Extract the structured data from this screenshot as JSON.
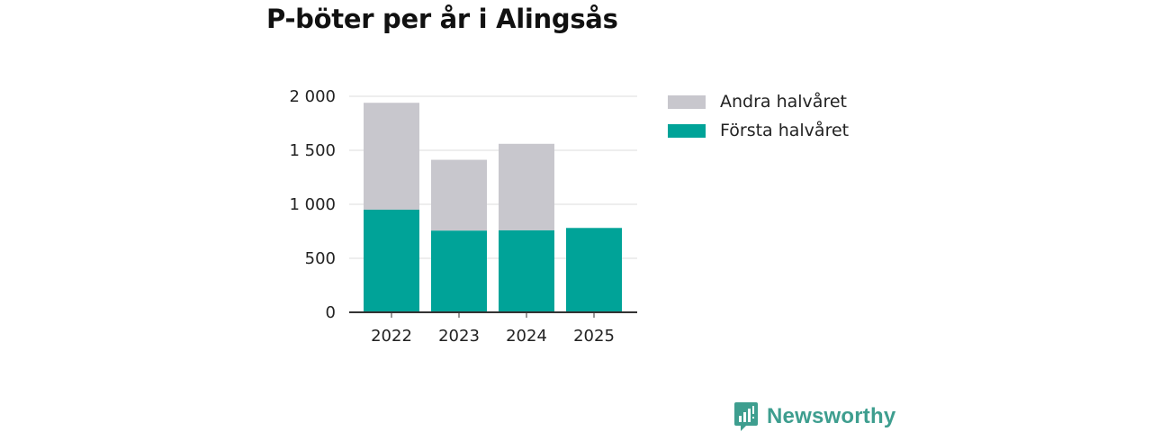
{
  "chart_data": {
    "type": "bar",
    "stacked": true,
    "title": "P-böter per år i Alingsås",
    "categories": [
      "2022",
      "2023",
      "2024",
      "2025"
    ],
    "series": [
      {
        "name": "Första halvåret",
        "color": "#00a398",
        "values": [
          950,
          757,
          760,
          781
        ]
      },
      {
        "name": "Andra halvåret",
        "color": "#c8c7cd",
        "values": [
          990,
          655,
          800,
          0
        ]
      }
    ],
    "yticks": [
      0,
      500,
      1000,
      1500,
      2000
    ],
    "ytick_labels": [
      "0",
      "500",
      "1 000",
      "1 500",
      "2 000"
    ],
    "ylim": [
      0,
      2000
    ],
    "xlabel": "",
    "ylabel": "",
    "grid": true,
    "legend": {
      "position": "top-right",
      "order": [
        "Andra halvåret",
        "Första halvåret"
      ]
    }
  },
  "brand": {
    "name": "Newsworthy",
    "logo_icon": "newsworthy-logo-icon",
    "color": "#3e9e8f"
  }
}
